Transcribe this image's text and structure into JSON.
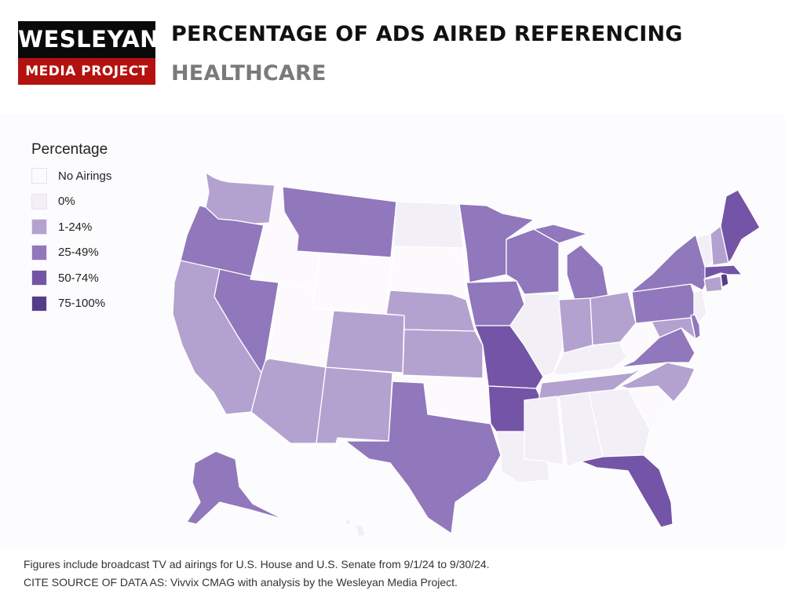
{
  "logo": {
    "line1": "WESLEYAN",
    "line2": "MEDIA PROJECT"
  },
  "title": "PERCENTAGE OF ADS AIRED REFERENCING",
  "subtitle": "HEALTHCARE",
  "legend": {
    "title": "Percentage",
    "items": [
      {
        "label": "No Airings",
        "color": "#fcfafd"
      },
      {
        "label": "0%",
        "color": "#f2eff7"
      },
      {
        "label": "1-24%",
        "color": "#b3a2cf"
      },
      {
        "label": "25-49%",
        "color": "#9177bb"
      },
      {
        "label": "50-74%",
        "color": "#7454a6"
      },
      {
        "label": "75-100%",
        "color": "#553c86"
      }
    ]
  },
  "states": {
    "WA": "1-24%",
    "OR": "25-49%",
    "CA": "1-24%",
    "NV": "25-49%",
    "ID": "No Airings",
    "MT": "25-49%",
    "WY": "No Airings",
    "UT": "No Airings",
    "AZ": "1-24%",
    "CO": "1-24%",
    "NM": "1-24%",
    "ND": "0%",
    "SD": "No Airings",
    "NE": "1-24%",
    "KS": "1-24%",
    "OK": "No Airings",
    "TX": "25-49%",
    "MN": "25-49%",
    "IA": "25-49%",
    "MO": "50-74%",
    "AR": "50-74%",
    "LA": "0%",
    "WI": "25-49%",
    "IL": "0%",
    "MS": "0%",
    "MI": "25-49%",
    "IN": "1-24%",
    "KY": "0%",
    "TN": "1-24%",
    "AL": "0%",
    "OH": "1-24%",
    "WV": "No Airings",
    "GA": "0%",
    "FL": "50-74%",
    "SC": "No Airings",
    "NC": "1-24%",
    "VA": "25-49%",
    "PA": "25-49%",
    "NY": "25-49%",
    "MD": "1-24%",
    "DE": "25-49%",
    "NJ": "0%",
    "CT": "1-24%",
    "RI": "75-100%",
    "MA": "50-74%",
    "VT": "0%",
    "NH": "1-24%",
    "ME": "50-74%",
    "AK": "25-49%",
    "HI": "0%"
  },
  "footer": {
    "line1": "Figures include broadcast TV ad airings for U.S. House and U.S. Senate from 9/1/24 to 9/30/24.",
    "line2": "CITE SOURCE OF DATA AS: Vivvix CMAG with analysis by the Wesleyan Media Project."
  }
}
